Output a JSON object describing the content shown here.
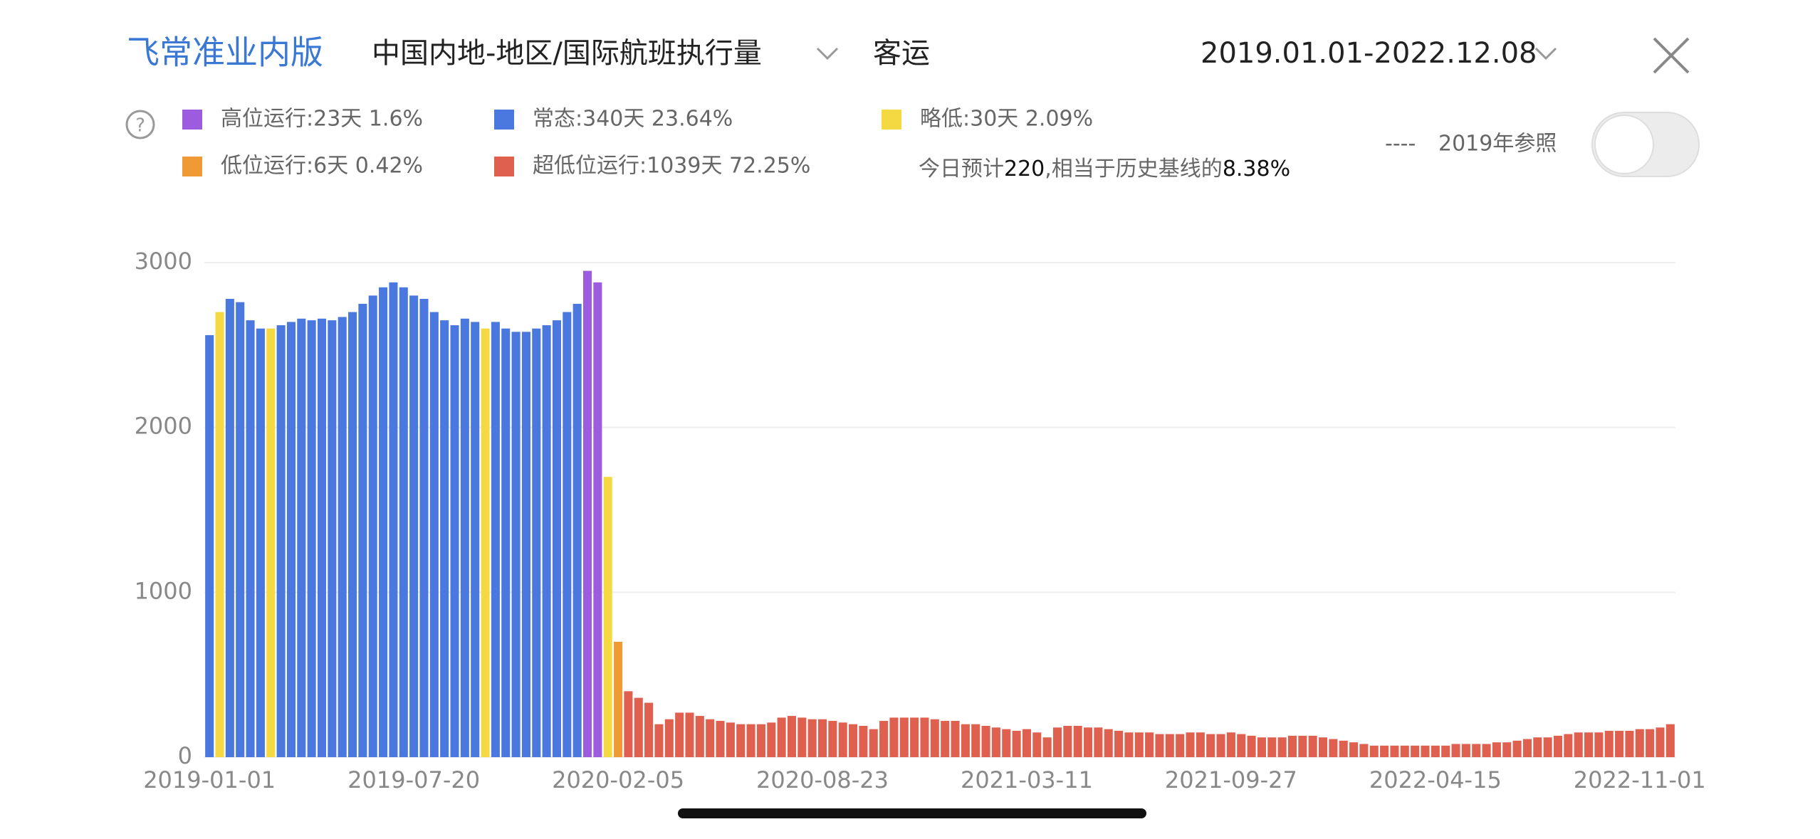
{
  "header": {
    "brand": "飞常准业内版",
    "metric": "中国内地-地区/国际航班执行量",
    "mode": "客运",
    "date_range": "2019.01.01-2022.12.08",
    "help": "?"
  },
  "forecast": {
    "prefix": "今日预计",
    "value": "220",
    "middle": ",相当于历史基线的",
    "ratio": "8.38%"
  },
  "reference": {
    "dash": "----",
    "label": "2019年参照"
  },
  "chart_data": {
    "type": "bar",
    "categories": [
      "2019-01-01",
      null,
      null,
      null,
      null,
      null,
      null,
      null,
      null,
      null,
      null,
      null,
      null,
      null,
      null,
      null,
      null,
      null,
      null,
      null,
      "2019-07-20",
      null,
      null,
      null,
      null,
      null,
      null,
      null,
      null,
      null,
      null,
      null,
      null,
      null,
      null,
      null,
      null,
      null,
      null,
      null,
      "2020-02-05",
      null,
      null,
      null,
      null,
      null,
      null,
      null,
      null,
      null,
      null,
      null,
      null,
      null,
      null,
      null,
      null,
      null,
      null,
      null,
      "2020-08-23",
      null,
      null,
      null,
      null,
      null,
      null,
      null,
      null,
      null,
      null,
      null,
      null,
      null,
      null,
      null,
      null,
      null,
      null,
      null,
      "2021-03-11",
      null,
      null,
      null,
      null,
      null,
      null,
      null,
      null,
      null,
      null,
      null,
      null,
      null,
      null,
      null,
      null,
      null,
      null,
      null,
      "2021-09-27",
      null,
      null,
      null,
      null,
      null,
      null,
      null,
      null,
      null,
      null,
      null,
      null,
      null,
      null,
      null,
      null,
      null,
      null,
      null,
      "2022-04-15",
      null,
      null,
      null,
      null,
      null,
      null,
      null,
      null,
      null,
      null,
      null,
      null,
      null,
      null,
      null,
      null,
      null,
      null,
      null,
      "2022-11-01",
      null,
      null,
      null
    ],
    "series": [
      {
        "name": "高位运行:23天 1.6%",
        "color": "#9d5be0",
        "values": [
          null,
          null,
          null,
          null,
          null,
          null,
          null,
          null,
          null,
          null,
          null,
          null,
          null,
          null,
          null,
          null,
          null,
          null,
          null,
          null,
          null,
          null,
          null,
          null,
          null,
          null,
          null,
          null,
          null,
          null,
          null,
          null,
          null,
          null,
          null,
          null,
          null,
          2950,
          2880,
          null,
          null,
          null,
          null,
          null,
          null,
          null,
          null,
          null,
          null,
          null,
          null,
          null,
          null,
          null,
          null,
          null,
          null,
          null,
          null,
          null,
          null,
          null,
          null,
          null,
          null,
          null,
          null,
          null,
          null,
          null,
          null,
          null,
          null,
          null,
          null,
          null,
          null,
          null,
          null,
          null,
          null,
          null,
          null,
          null,
          null,
          null,
          null,
          null,
          null,
          null,
          null,
          null,
          null,
          null,
          null,
          null,
          null,
          null,
          null,
          null,
          null,
          null,
          null,
          null,
          null,
          null,
          null,
          null,
          null,
          null,
          null,
          null,
          null,
          null,
          null,
          null,
          null,
          null,
          null,
          null,
          null,
          null,
          null,
          null,
          null,
          null,
          null,
          null,
          null,
          null,
          null,
          null,
          null,
          null,
          null,
          null,
          null,
          null,
          null,
          null,
          null,
          null,
          null,
          null
        ]
      },
      {
        "name": "常态:340天 23.64%",
        "color": "#4a78df",
        "values": [
          2560,
          null,
          2780,
          2760,
          2650,
          2600,
          null,
          2620,
          2640,
          2660,
          2650,
          2660,
          2650,
          2670,
          2700,
          2750,
          2800,
          2850,
          2880,
          2850,
          2800,
          2780,
          2700,
          2650,
          2620,
          2660,
          2640,
          null,
          2640,
          2600,
          2580,
          2580,
          2600,
          2620,
          2650,
          2700,
          2750,
          null,
          null,
          null,
          null,
          null,
          null,
          null,
          null,
          null,
          null,
          null,
          null,
          null,
          null,
          null,
          null,
          null,
          null,
          null,
          null,
          null,
          null,
          null,
          null,
          null,
          null,
          null,
          null,
          null,
          null,
          null,
          null,
          null,
          null,
          null,
          null,
          null,
          null,
          null,
          null,
          null,
          null,
          null,
          null,
          null,
          null,
          null,
          null,
          null,
          null,
          null,
          null,
          null,
          null,
          null,
          null,
          null,
          null,
          null,
          null,
          null,
          null,
          null,
          null,
          null,
          null,
          null,
          null,
          null,
          null,
          null,
          null,
          null,
          null,
          null,
          null,
          null,
          null,
          null,
          null,
          null,
          null,
          null,
          null,
          null,
          null,
          null,
          null,
          null,
          null,
          null,
          null,
          null,
          null,
          null,
          null,
          null,
          null,
          null,
          null,
          null,
          null,
          null,
          null,
          null,
          null,
          null
        ]
      },
      {
        "name": "略低:30天 2.09%",
        "color": "#f5d943",
        "values": [
          null,
          2700,
          null,
          null,
          null,
          null,
          2600,
          null,
          null,
          null,
          null,
          null,
          null,
          null,
          null,
          null,
          null,
          null,
          null,
          null,
          null,
          null,
          null,
          null,
          null,
          null,
          null,
          2600,
          null,
          null,
          null,
          null,
          null,
          null,
          null,
          null,
          null,
          null,
          null,
          1700,
          null,
          null,
          null,
          null,
          null,
          null,
          null,
          null,
          null,
          null,
          null,
          null,
          null,
          null,
          null,
          null,
          null,
          null,
          null,
          null,
          null,
          null,
          null,
          null,
          null,
          null,
          null,
          null,
          null,
          null,
          null,
          null,
          null,
          null,
          null,
          null,
          null,
          null,
          null,
          null,
          null,
          null,
          null,
          null,
          null,
          null,
          null,
          null,
          null,
          null,
          null,
          null,
          null,
          null,
          null,
          null,
          null,
          null,
          null,
          null,
          null,
          null,
          null,
          null,
          null,
          null,
          null,
          null,
          null,
          null,
          null,
          null,
          null,
          null,
          null,
          null,
          null,
          null,
          null,
          null,
          null,
          null,
          null,
          null,
          null,
          null,
          null,
          null,
          null,
          null,
          null,
          null,
          null,
          null,
          null,
          null,
          null,
          null,
          null,
          null,
          null,
          null,
          null,
          null
        ]
      },
      {
        "name": "低位运行:6天 0.42%",
        "color": "#f09a36",
        "values": [
          null,
          null,
          null,
          null,
          null,
          null,
          null,
          null,
          null,
          null,
          null,
          null,
          null,
          null,
          null,
          null,
          null,
          null,
          null,
          null,
          null,
          null,
          null,
          null,
          null,
          null,
          null,
          null,
          null,
          null,
          null,
          null,
          null,
          null,
          null,
          null,
          null,
          null,
          null,
          null,
          700,
          null,
          null,
          null,
          null,
          null,
          null,
          null,
          null,
          null,
          null,
          null,
          null,
          null,
          null,
          null,
          null,
          null,
          null,
          null,
          null,
          null,
          null,
          null,
          null,
          null,
          null,
          null,
          null,
          null,
          null,
          null,
          null,
          null,
          null,
          null,
          null,
          null,
          null,
          null,
          null,
          null,
          null,
          null,
          null,
          null,
          null,
          null,
          null,
          null,
          null,
          null,
          null,
          null,
          null,
          null,
          null,
          null,
          null,
          null,
          null,
          null,
          null,
          null,
          null,
          null,
          null,
          null,
          null,
          null,
          null,
          null,
          null,
          null,
          null,
          null,
          null,
          null,
          null,
          null,
          null,
          null,
          null,
          null,
          null,
          null,
          null,
          null,
          null,
          null,
          null,
          null,
          null,
          null,
          null,
          null,
          null,
          null,
          null,
          null,
          null,
          null,
          null,
          null
        ]
      },
      {
        "name": "超低位运行:1039天 72.25%",
        "color": "#e0604f",
        "values": [
          null,
          null,
          null,
          null,
          null,
          null,
          null,
          null,
          null,
          null,
          null,
          null,
          null,
          null,
          null,
          null,
          null,
          null,
          null,
          null,
          null,
          null,
          null,
          null,
          null,
          null,
          null,
          null,
          null,
          null,
          null,
          null,
          null,
          null,
          null,
          null,
          null,
          null,
          null,
          null,
          null,
          400,
          360,
          330,
          200,
          230,
          270,
          270,
          250,
          230,
          220,
          210,
          200,
          200,
          200,
          210,
          240,
          250,
          240,
          230,
          230,
          220,
          210,
          200,
          190,
          170,
          220,
          240,
          240,
          240,
          240,
          230,
          220,
          220,
          200,
          200,
          190,
          180,
          170,
          160,
          170,
          150,
          120,
          180,
          190,
          190,
          180,
          180,
          170,
          160,
          150,
          150,
          150,
          140,
          140,
          140,
          150,
          150,
          140,
          140,
          150,
          140,
          130,
          120,
          120,
          120,
          130,
          130,
          130,
          120,
          110,
          100,
          90,
          80,
          70,
          70,
          70,
          70,
          70,
          70,
          70,
          70,
          80,
          80,
          80,
          80,
          90,
          90,
          100,
          110,
          120,
          120,
          130,
          140,
          150,
          150,
          150,
          160,
          160,
          160,
          170,
          170,
          180,
          200
        ]
      }
    ],
    "ylim": [
      0,
      3000
    ],
    "yticks": [
      0,
      1000,
      2000,
      3000
    ],
    "grid": true
  }
}
